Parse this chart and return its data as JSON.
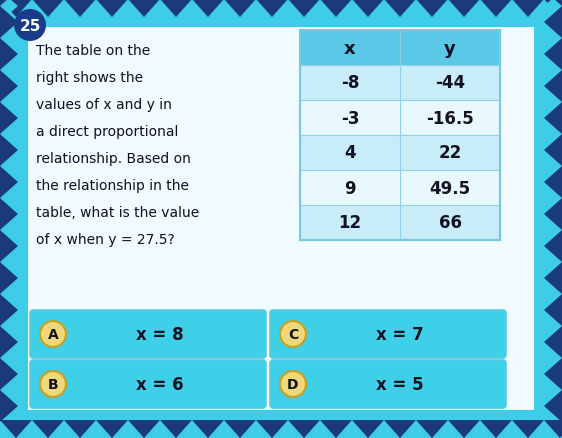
{
  "question_number": "25",
  "question_text_lines": [
    "The table on the",
    "right shows the",
    "values of x and y in",
    "a direct proportional",
    "relationship. Based on",
    "the relationship in the",
    "table, what is the value",
    "of x when y = 27.5?"
  ],
  "table_headers": [
    "x",
    "y"
  ],
  "table_rows": [
    [
      "-8",
      "-44"
    ],
    [
      "-3",
      "-16.5"
    ],
    [
      "4",
      "22"
    ],
    [
      "9",
      "49.5"
    ],
    [
      "12",
      "66"
    ]
  ],
  "answers": [
    {
      "label": "A",
      "text": "x = 8"
    },
    {
      "label": "C",
      "text": "x = 7"
    },
    {
      "label": "B",
      "text": "x = 6"
    },
    {
      "label": "D",
      "text": "x = 5"
    }
  ],
  "bg_outer_dark": "#1a3a7a",
  "bg_outer_teal": "#3ecde8",
  "bg_inner": "#f0faff",
  "table_header_bg": "#5bc8e8",
  "table_row_bg_light": "#c8ecf8",
  "table_row_bg_white": "#e8f8fc",
  "answer_box_bg": "#3dd0e8",
  "answer_circle_bg": "#f0d878",
  "answer_circle_border": "#c8a020",
  "text_color_dark": "#111122",
  "q_number_bg": "#1a3a8a",
  "q_number_text": "#ffffff",
  "table_border_color": "#7ac8e0",
  "table_line_color": "#90d0e8"
}
